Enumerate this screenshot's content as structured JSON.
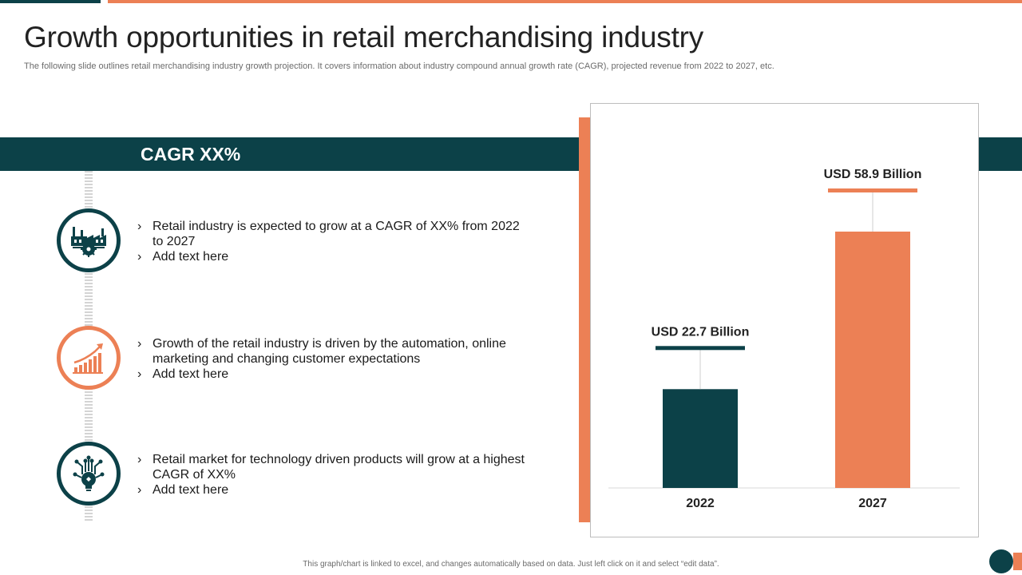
{
  "header": {
    "title": "Growth opportunities in retail merchandising industry",
    "subtitle": "The following slide outlines retail merchandising industry growth projection. It covers information about industry compound annual growth rate (CAGR), projected revenue from 2022 to 2027, etc."
  },
  "band": {
    "label": "CAGR XX%"
  },
  "points": [
    {
      "icon": "factory-gear-icon",
      "bullets": [
        "Retail industry is expected to grow at a CAGR of XX% from 2022 to 2027",
        "Add text here"
      ]
    },
    {
      "icon": "growth-chart-icon",
      "bullets": [
        "Growth of the retail industry is driven by the automation, online marketing and changing customer expectations",
        "Add text here"
      ]
    },
    {
      "icon": "tech-lightbulb-icon",
      "bullets": [
        "Retail market for technology driven products will grow at a highest CAGR of XX%",
        "Add text here"
      ]
    }
  ],
  "footer": {
    "note": "This graph/chart is linked to excel, and changes automatically based on data. Just left click on it and select “edit data”."
  },
  "colors": {
    "dark": "#0c4148",
    "accent": "#ec8055"
  },
  "chart_data": {
    "type": "bar",
    "categories": [
      "2022",
      "2027"
    ],
    "values": [
      22.7,
      58.9
    ],
    "data_labels": [
      "USD 22.7 Billion",
      "USD 58.9 Billion"
    ],
    "bar_colors": [
      "#0c4148",
      "#ec8055"
    ],
    "title": "",
    "xlabel": "",
    "ylabel": "",
    "grid": false,
    "legend": "none"
  }
}
